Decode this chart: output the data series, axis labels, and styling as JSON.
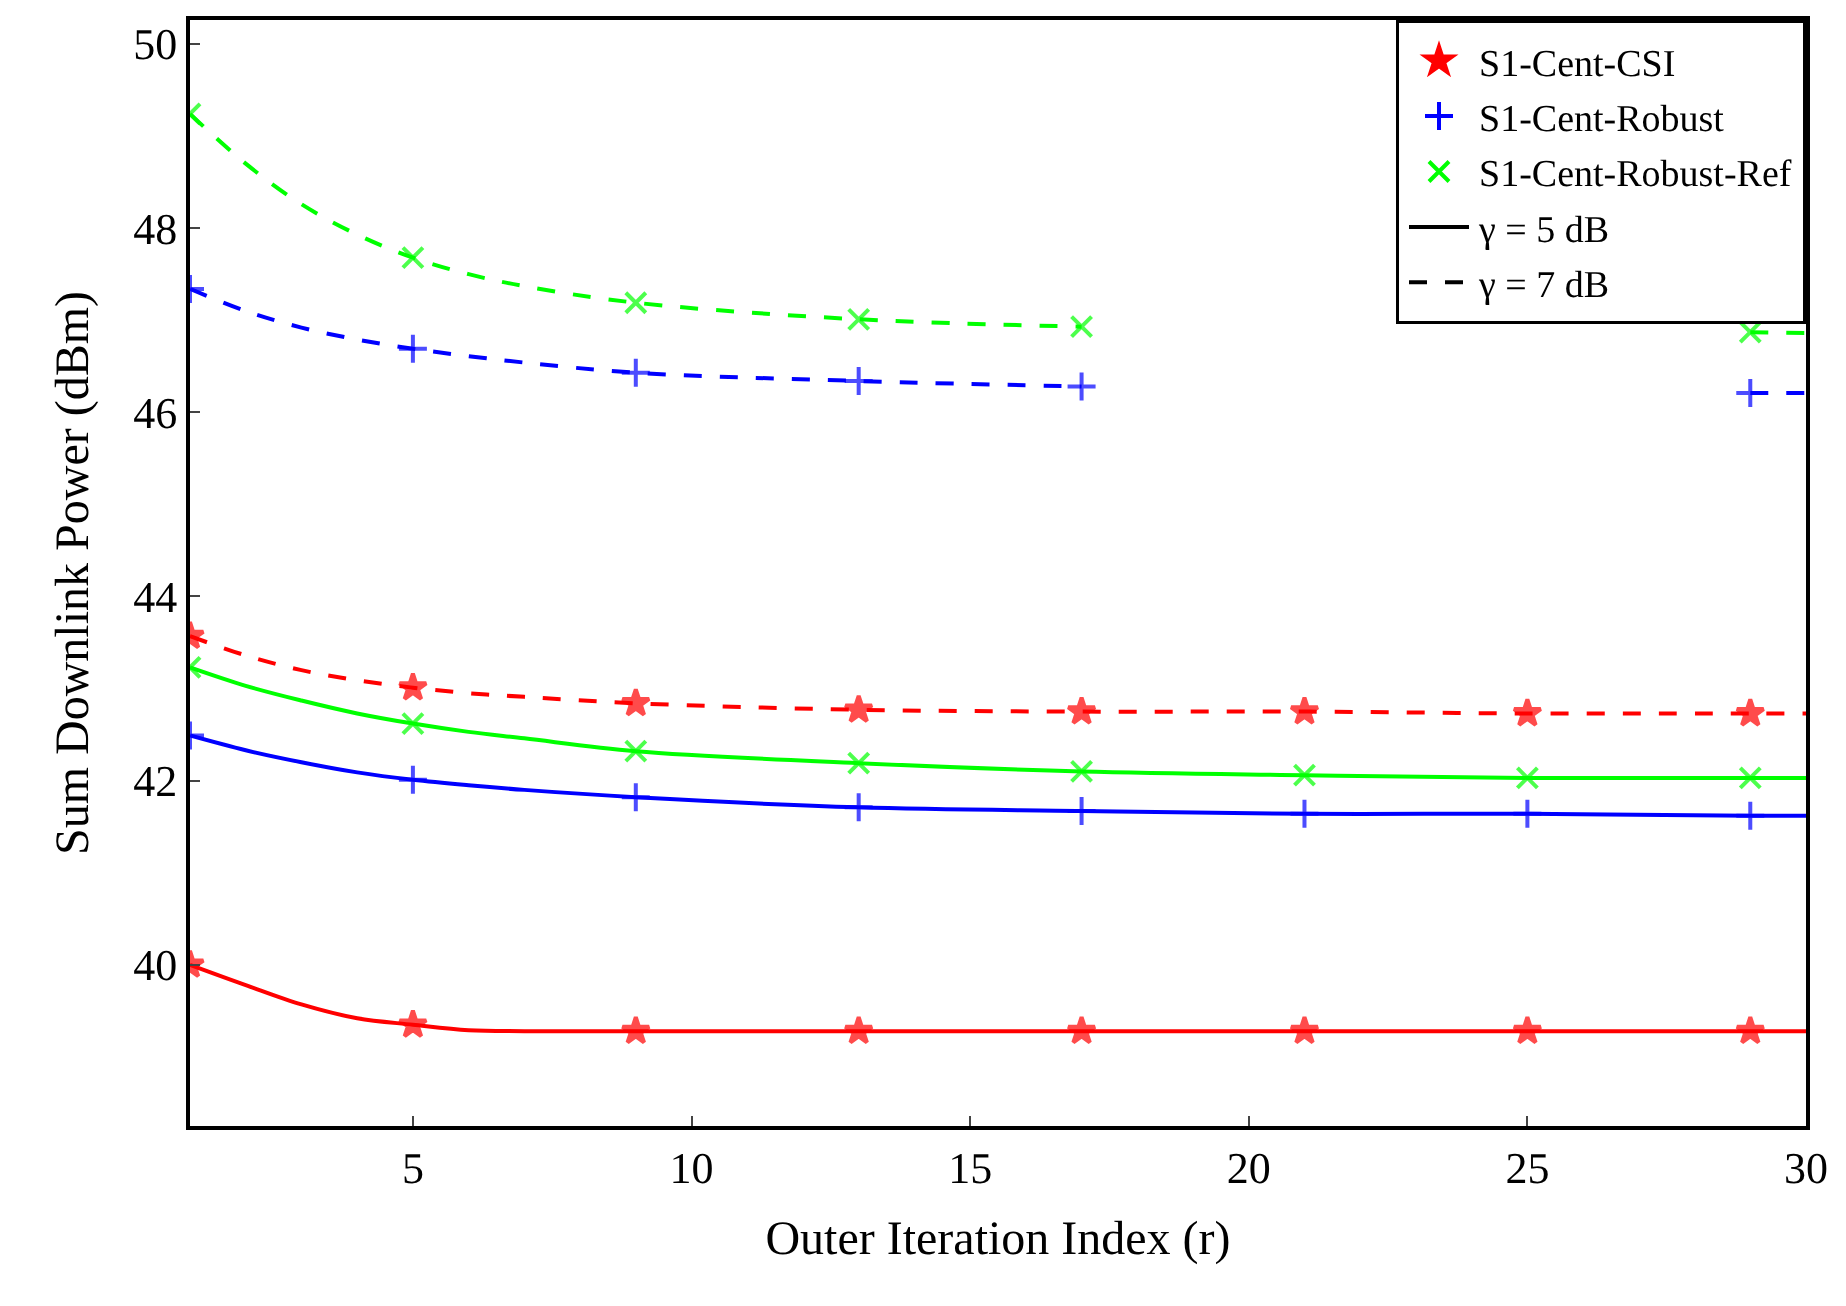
{
  "chart_data": {
    "type": "line",
    "xlabel": "Outer Iteration Index (r)",
    "ylabel": "Sum Downlink Power (dBm)",
    "x": [
      1,
      2,
      3,
      4,
      5,
      6,
      7,
      9,
      13,
      17,
      21,
      25,
      29,
      30
    ],
    "xlim": [
      1,
      30
    ],
    "xticks": [
      5,
      10,
      15,
      20,
      25,
      30
    ],
    "ylim": [
      38.25,
      50.26
    ],
    "yticks": [
      40,
      42,
      44,
      46,
      48,
      50
    ],
    "legend": "top right",
    "series": [
      {
        "name": "S1-Cent-CSI",
        "color": "#ff0000",
        "marker": "star",
        "line_style": "solid",
        "values": [
          40.0,
          39.78,
          39.57,
          39.42,
          39.35,
          39.29,
          39.28,
          39.28,
          39.28,
          39.28,
          39.28,
          39.28,
          39.28,
          39.28
        ]
      },
      {
        "name": "S1-Cent-Robust",
        "color": "#0000ff",
        "marker": "cross",
        "line_style": "solid",
        "values": [
          42.49,
          42.33,
          42.2,
          42.09,
          42.01,
          41.95,
          41.9,
          41.82,
          41.71,
          41.67,
          41.64,
          41.64,
          41.62,
          41.62
        ]
      },
      {
        "name": "S1-Cent-Robust-Ref",
        "color": "#00ff00",
        "marker": "x",
        "line_style": "solid",
        "values": [
          43.23,
          43.03,
          42.87,
          42.73,
          42.62,
          42.53,
          42.46,
          42.32,
          42.19,
          42.1,
          42.06,
          42.03,
          42.03,
          42.03
        ]
      },
      {
        "name": "γ = 5 dB",
        "color": "#000000",
        "marker": "none",
        "line_style": "solid",
        "values": [
          null,
          null,
          null,
          null,
          null,
          null,
          null,
          null,
          null,
          null,
          null,
          null,
          null,
          null
        ]
      },
      {
        "name": "γ = 7 dB",
        "color": "#000000",
        "marker": "none",
        "line_style": "dashed",
        "values": [
          null,
          null,
          null,
          null,
          null,
          null,
          null,
          null,
          null,
          null,
          null,
          null,
          null,
          null
        ]
      },
      {
        "color": "#ff0000",
        "marker": "star",
        "line_style": "dashed",
        "values": [
          43.57,
          43.36,
          43.2,
          43.09,
          43.01,
          42.95,
          42.91,
          42.84,
          42.77,
          42.75,
          42.75,
          42.73,
          42.73,
          42.73
        ]
      },
      {
        "color": "#0000ff",
        "marker": "cross",
        "line_style": "dashed",
        "values": [
          47.34,
          47.1,
          46.92,
          46.79,
          46.69,
          46.61,
          46.54,
          46.43,
          46.34,
          46.28,
          null,
          null,
          46.21,
          46.21
        ]
      },
      {
        "color": "#00ff00",
        "marker": "x",
        "line_style": "dashed",
        "values": [
          49.24,
          48.7,
          48.26,
          47.93,
          47.68,
          47.5,
          47.37,
          47.19,
          47.01,
          46.93,
          null,
          null,
          46.87,
          46.86
        ]
      }
    ]
  }
}
